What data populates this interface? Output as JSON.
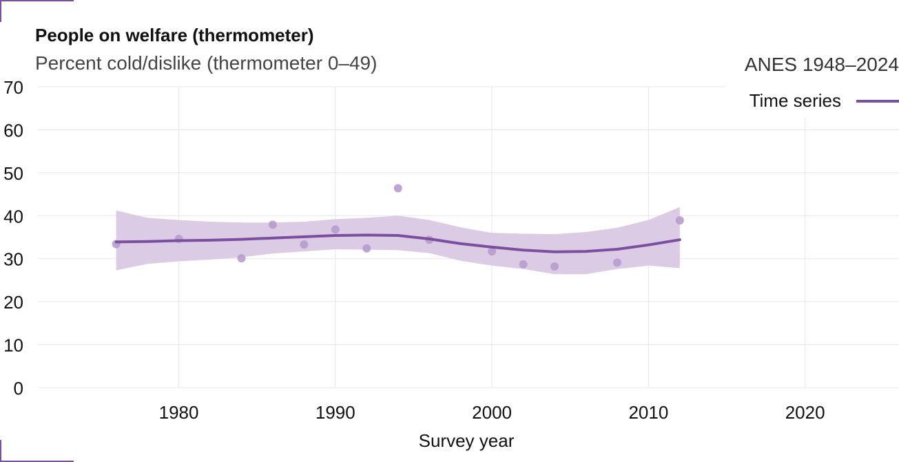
{
  "title": "People on welfare (thermometer)",
  "subtitle": "Percent cold/dislike (thermometer 0–49)",
  "source": "ANES 1948–2024",
  "colors": {
    "accent": "#7b4fa0",
    "band": "#d9c8e3",
    "point": "#b79ccc",
    "grid": "#e6e6e6"
  },
  "chart_data": {
    "type": "line",
    "title": "People on welfare (thermometer)",
    "subtitle": "Percent cold/dislike (thermometer 0–49)",
    "xlabel": "Survey year",
    "ylabel": "",
    "xlim": [
      1971,
      2026
    ],
    "ylim": [
      0,
      70
    ],
    "xticks": [
      "1980",
      "1990",
      "2000",
      "2010",
      "2020"
    ],
    "yticks": [
      "0",
      "10",
      "20",
      "30",
      "40",
      "50",
      "60",
      "70"
    ],
    "grid": true,
    "legend": {
      "position": "top-right",
      "entries": [
        "Time series"
      ]
    },
    "points": {
      "x": [
        1976,
        1980,
        1984,
        1986,
        1988,
        1990,
        1992,
        1994,
        1996,
        2000,
        2002,
        2004,
        2008,
        2012
      ],
      "y": [
        33.4,
        34.6,
        30.1,
        37.9,
        33.3,
        36.8,
        32.4,
        46.4,
        34.4,
        31.7,
        28.7,
        28.2,
        29.1,
        38.9
      ]
    },
    "series": [
      {
        "name": "Time series",
        "x": [
          1976,
          1978,
          1980,
          1982,
          1984,
          1986,
          1988,
          1990,
          1992,
          1994,
          1996,
          1998,
          2000,
          2002,
          2004,
          2006,
          2008,
          2010,
          2012
        ],
        "y": [
          33.9,
          34.0,
          34.2,
          34.3,
          34.5,
          34.8,
          35.1,
          35.4,
          35.5,
          35.4,
          34.6,
          33.5,
          32.7,
          32.0,
          31.6,
          31.7,
          32.2,
          33.2,
          34.4
        ],
        "lower": [
          27.3,
          28.8,
          29.4,
          29.8,
          30.3,
          31.2,
          31.7,
          32.2,
          32.1,
          32.0,
          31.3,
          29.5,
          28.4,
          27.6,
          26.4,
          26.4,
          27.6,
          28.4,
          27.8
        ],
        "upper": [
          41.2,
          39.5,
          39.0,
          38.6,
          38.4,
          38.4,
          38.6,
          39.2,
          39.5,
          40.0,
          39.0,
          37.3,
          36.0,
          35.8,
          35.7,
          36.2,
          37.2,
          39.0,
          42.0
        ]
      }
    ]
  }
}
